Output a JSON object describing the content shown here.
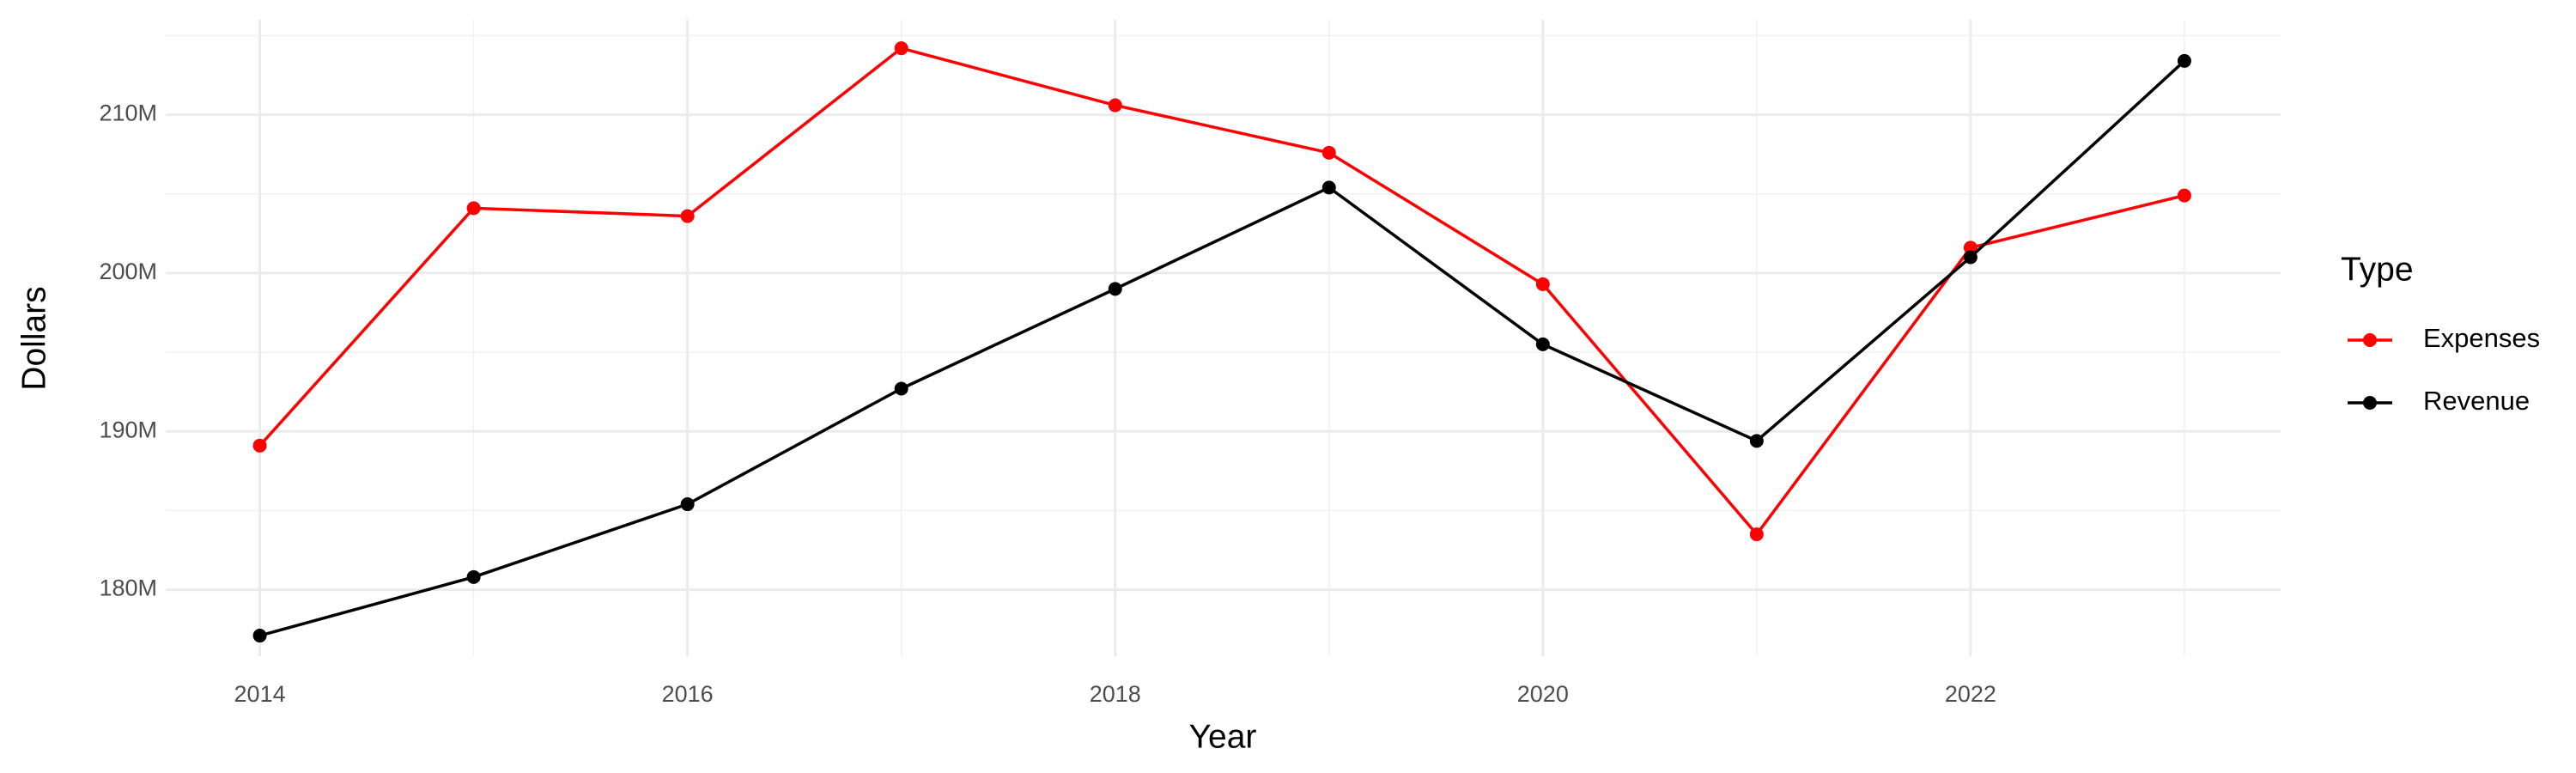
{
  "chart_data": {
    "type": "line",
    "x_label": "Year",
    "y_label": "Dollars",
    "x": [
      2014,
      2015,
      2016,
      2017,
      2018,
      2019,
      2020,
      2021,
      2022,
      2023
    ],
    "series": [
      {
        "name": "Expenses",
        "color": "#ff0000",
        "values": [
          189100000,
          204100000,
          203600000,
          214200000,
          210600000,
          207600000,
          199300000,
          183500000,
          201600000,
          204900000
        ]
      },
      {
        "name": "Revenue",
        "color": "#000000",
        "values": [
          177100000,
          180800000,
          185400000,
          192700000,
          199000000,
          205400000,
          195500000,
          189400000,
          201000000,
          213400000
        ]
      }
    ],
    "xlim": [
      2013.56,
      2023.45
    ],
    "xticks": [
      2014,
      2016,
      2018,
      2020,
      2022
    ],
    "ylim": [
      175800000,
      216000000
    ],
    "yticks": [
      {
        "value": 180000000,
        "label": "180M"
      },
      {
        "value": 190000000,
        "label": "190M"
      },
      {
        "value": 200000000,
        "label": "200M"
      },
      {
        "value": 210000000,
        "label": "210M"
      }
    ],
    "grid": true,
    "legend_title": "Type",
    "legend_position": "right"
  }
}
